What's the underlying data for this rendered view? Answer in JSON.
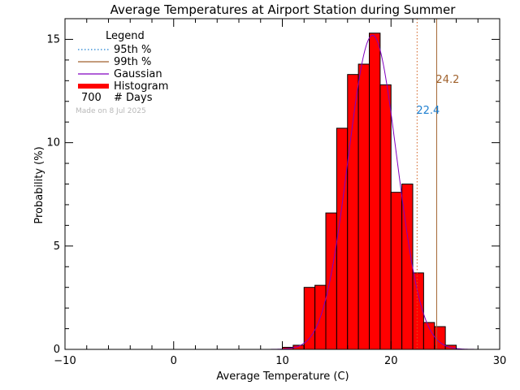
{
  "chart_data": {
    "type": "bar",
    "title": "Average Temperatures at Airport Station during Summer",
    "xlabel": "Average Temperature (C)",
    "ylabel": "Probability (%)",
    "xlim": [
      -10,
      30
    ],
    "ylim": [
      0,
      16
    ],
    "xticks": [
      -10,
      0,
      10,
      20,
      30
    ],
    "yticks": [
      0,
      5,
      10,
      15
    ],
    "bin_width": 1,
    "histogram": {
      "name": "Histogram",
      "bin_starts": [
        10,
        11,
        12,
        13,
        14,
        15,
        16,
        17,
        18,
        19,
        20,
        21,
        22,
        23,
        24,
        25
      ],
      "values": [
        0.1,
        0.2,
        3.0,
        3.1,
        6.6,
        10.7,
        13.3,
        13.8,
        15.3,
        12.8,
        7.6,
        8.0,
        3.7,
        1.3,
        1.1,
        0.2
      ],
      "color": "#ff0000"
    },
    "gaussian": {
      "name": "Gaussian",
      "mean": 18.3,
      "sigma": 2.25,
      "peak": 15.2,
      "color": "#8000c0"
    },
    "percentile_95": {
      "name": "95th %",
      "value": 22.4,
      "label": "22.4",
      "color": "#1e7fd0"
    },
    "percentile_99": {
      "name": "99th %",
      "value": 24.2,
      "label": "24.2",
      "color": "#a0622d"
    },
    "legend": {
      "title": "Legend",
      "placement": "top-left",
      "entries": [
        {
          "label": "95th %",
          "style": "dotted",
          "color": "#1e7fd0"
        },
        {
          "label": "99th %",
          "style": "solid",
          "color": "#a0622d"
        },
        {
          "label": "Gaussian",
          "style": "solid",
          "color": "#8000c0"
        },
        {
          "label": "Histogram",
          "style": "thick",
          "color": "#ff0000"
        }
      ],
      "days_count": "700",
      "days_label": "# Days"
    },
    "made_on": "Made on 8 Jul 2025"
  }
}
